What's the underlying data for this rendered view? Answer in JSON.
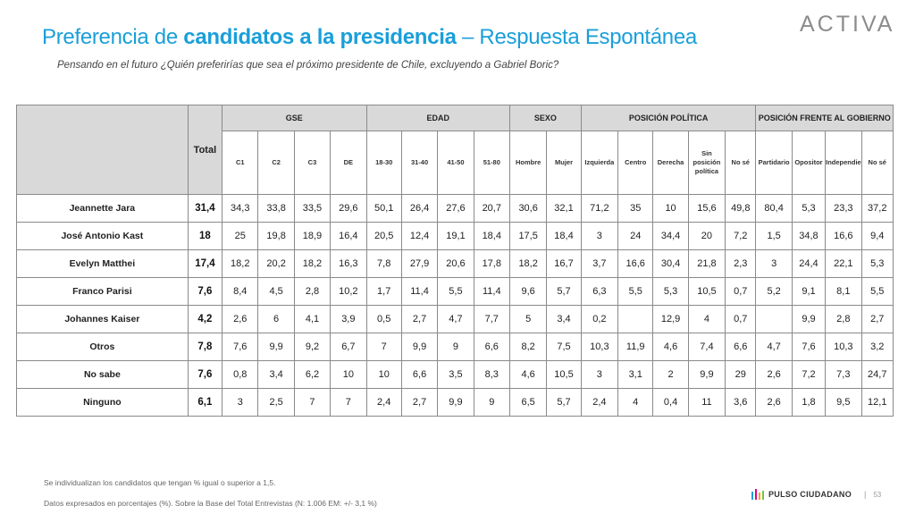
{
  "header": {
    "title_part1": "Preferencia de ",
    "title_part2": "candidatos a la presidencia",
    "title_part3": " – Respuesta Espontánea",
    "subtitle": "Pensando en el futuro ¿Quién preferirías que sea el próximo presidente de Chile, excluyendo a Gabriel Boric?",
    "logo": "ACTIVA"
  },
  "table": {
    "total_label": "Total",
    "groups": [
      "GSE",
      "EDAD",
      "SEXO",
      "POSICIÓN POLÍTICA",
      "POSICIÓN FRENTE AL GOBIERNO"
    ],
    "subheaders": [
      "C1",
      "C2",
      "C3",
      "DE",
      "18-30",
      "31-40",
      "41-50",
      "51-80",
      "Hombre",
      "Mujer",
      "Izquierda",
      "Centro",
      "Derecha",
      "Sin posición política",
      "No sé",
      "Partidario",
      "Opositor",
      "Independiente",
      "No sé"
    ],
    "rows": [
      {
        "name": "Jeannette Jara",
        "total": "31,4",
        "values": [
          "34,3",
          "33,8",
          "33,5",
          "29,6",
          "50,1",
          "26,4",
          "27,6",
          "20,7",
          "30,6",
          "32,1",
          "71,2",
          "35",
          "10",
          "15,6",
          "49,8",
          "80,4",
          "5,3",
          "23,3",
          "37,2"
        ]
      },
      {
        "name": "José Antonio Kast",
        "total": "18",
        "values": [
          "25",
          "19,8",
          "18,9",
          "16,4",
          "20,5",
          "12,4",
          "19,1",
          "18,4",
          "17,5",
          "18,4",
          "3",
          "24",
          "34,4",
          "20",
          "7,2",
          "1,5",
          "34,8",
          "16,6",
          "9,4"
        ]
      },
      {
        "name": "Evelyn Matthei",
        "total": "17,4",
        "values": [
          "18,2",
          "20,2",
          "18,2",
          "16,3",
          "7,8",
          "27,9",
          "20,6",
          "17,8",
          "18,2",
          "16,7",
          "3,7",
          "16,6",
          "30,4",
          "21,8",
          "2,3",
          "3",
          "24,4",
          "22,1",
          "5,3"
        ]
      },
      {
        "name": "Franco Parisi",
        "total": "7,6",
        "values": [
          "8,4",
          "4,5",
          "2,8",
          "10,2",
          "1,7",
          "11,4",
          "5,5",
          "11,4",
          "9,6",
          "5,7",
          "6,3",
          "5,5",
          "5,3",
          "10,5",
          "0,7",
          "5,2",
          "9,1",
          "8,1",
          "5,5"
        ]
      },
      {
        "name": "Johannes Kaiser",
        "total": "4,2",
        "values": [
          "2,6",
          "6",
          "4,1",
          "3,9",
          "0,5",
          "2,7",
          "4,7",
          "7,7",
          "5",
          "3,4",
          "0,2",
          "",
          "12,9",
          "4",
          "0,7",
          "",
          "9,9",
          "2,8",
          "2,7"
        ]
      },
      {
        "name": "Otros",
        "total": "7,8",
        "values": [
          "7,6",
          "9,9",
          "9,2",
          "6,7",
          "7",
          "9,9",
          "9",
          "6,6",
          "8,2",
          "7,5",
          "10,3",
          "11,9",
          "4,6",
          "7,4",
          "6,6",
          "4,7",
          "7,6",
          "10,3",
          "3,2"
        ]
      },
      {
        "name": "No sabe",
        "total": "7,6",
        "values": [
          "0,8",
          "3,4",
          "6,2",
          "10",
          "10",
          "6,6",
          "3,5",
          "8,3",
          "4,6",
          "10,5",
          "3",
          "3,1",
          "2",
          "9,9",
          "29",
          "2,6",
          "7,2",
          "7,3",
          "24,7"
        ]
      },
      {
        "name": "Ninguno",
        "total": "6,1",
        "values": [
          "3",
          "2,5",
          "7",
          "7",
          "2,4",
          "2,7",
          "9,9",
          "9",
          "6,5",
          "5,7",
          "2,4",
          "4",
          "0,4",
          "11",
          "3,6",
          "2,6",
          "1,8",
          "9,5",
          "12,1"
        ]
      }
    ]
  },
  "footer": {
    "note1": "Se individualizan los candidatos que tengan % igual o superior a 1,5.",
    "note2": "Datos expresados en porcentajes (%). Sobre la Base del Total Entrevistas (N: 1.006  EM: +/- 3,1 %)",
    "brand": "PULSO CIUDADANO",
    "separator": "|",
    "page": "53"
  },
  "colors": {
    "title": "#1a9fd9",
    "header_fill": "#d9d9d9",
    "logo": "#8c8c8c",
    "brand_bars": [
      "#1a9fd9",
      "#e6007e",
      "#f5a623",
      "#7ac143"
    ]
  }
}
